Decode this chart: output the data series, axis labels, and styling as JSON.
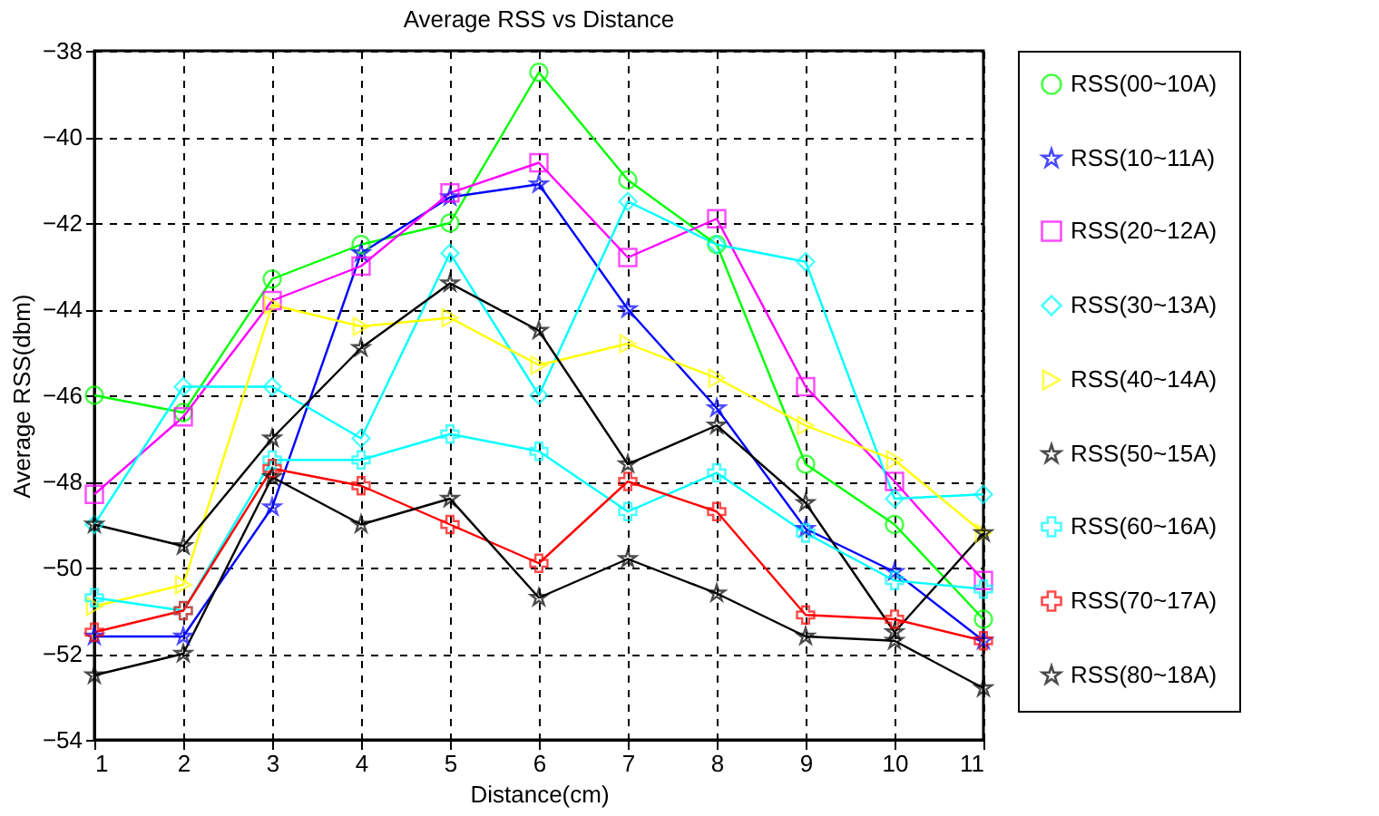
{
  "chart_data": {
    "type": "line",
    "title": "Average RSS vs Distance",
    "xlabel": "Distance(cm)",
    "ylabel": "Average RSS(dbm)",
    "x": [
      1,
      2,
      3,
      4,
      5,
      6,
      7,
      8,
      9,
      10,
      11
    ],
    "xlim": [
      1,
      11
    ],
    "xticks": [
      1,
      2,
      3,
      4,
      5,
      6,
      7,
      8,
      9,
      10,
      11
    ],
    "ylim": [
      -54,
      -38
    ],
    "yticks": [
      -54,
      -52,
      -50,
      -48,
      -46,
      -44,
      -42,
      -40,
      -38
    ],
    "grid": true,
    "legend": "right",
    "line_style": "solid",
    "series": [
      {
        "name": "RSS(00~10A)",
        "color": "#00ff00",
        "marker": "circle",
        "values": [
          -46.0,
          -46.4,
          -43.3,
          -42.5,
          -42.0,
          -38.5,
          -41.0,
          -42.5,
          -47.6,
          -49.0,
          -51.2
        ]
      },
      {
        "name": "RSS(10~11A)",
        "color": "#0000ff",
        "marker": "star",
        "values": [
          -51.6,
          -51.6,
          -48.6,
          -42.7,
          -41.4,
          -41.1,
          -44.0,
          -46.3,
          -49.1,
          -50.1,
          -51.7
        ]
      },
      {
        "name": "RSS(20~12A)",
        "color": "#ff00ff",
        "marker": "square",
        "values": [
          -48.3,
          -46.5,
          -43.8,
          -43.0,
          -41.3,
          -40.6,
          -42.8,
          -41.9,
          -45.8,
          -48.0,
          -50.3
        ]
      },
      {
        "name": "RSS(30~13A)",
        "color": "#00ffff",
        "marker": "diamond",
        "values": [
          -49.0,
          -45.8,
          -45.8,
          -47.0,
          -42.7,
          -46.0,
          -41.5,
          -42.5,
          -42.9,
          -48.4,
          -48.3
        ]
      },
      {
        "name": "RSS(40~14A)",
        "color": "#ffff00",
        "marker": "triangle",
        "values": [
          -50.9,
          -50.4,
          -43.9,
          -44.4,
          -44.2,
          -45.3,
          -44.8,
          -45.6,
          -46.7,
          -47.5,
          -49.2
        ]
      },
      {
        "name": "RSS(50~15A)",
        "color": "#000000",
        "marker": "star",
        "values": [
          -49.0,
          -49.5,
          -47.0,
          -44.9,
          -43.4,
          -44.5,
          -47.6,
          -46.7,
          -48.5,
          -51.5,
          -49.2
        ]
      },
      {
        "name": "RSS(60~16A)",
        "color": "#00ffff",
        "marker": "cross",
        "values": [
          -50.7,
          -51.0,
          -47.5,
          -47.5,
          -46.9,
          -47.3,
          -48.7,
          -47.8,
          -49.2,
          -50.3,
          -50.5
        ]
      },
      {
        "name": "RSS(70~17A)",
        "color": "#ff0000",
        "marker": "cross",
        "values": [
          -51.5,
          -51.0,
          -47.7,
          -48.1,
          -49.0,
          -49.9,
          -48.0,
          -48.7,
          -51.1,
          -51.2,
          -51.7
        ]
      },
      {
        "name": "RSS(80~18A)",
        "color": "#000000",
        "marker": "star",
        "values": [
          -52.5,
          -52.0,
          -47.9,
          -49.0,
          -48.4,
          -50.7,
          -49.8,
          -50.6,
          -51.6,
          -51.7,
          -52.8
        ]
      }
    ]
  }
}
